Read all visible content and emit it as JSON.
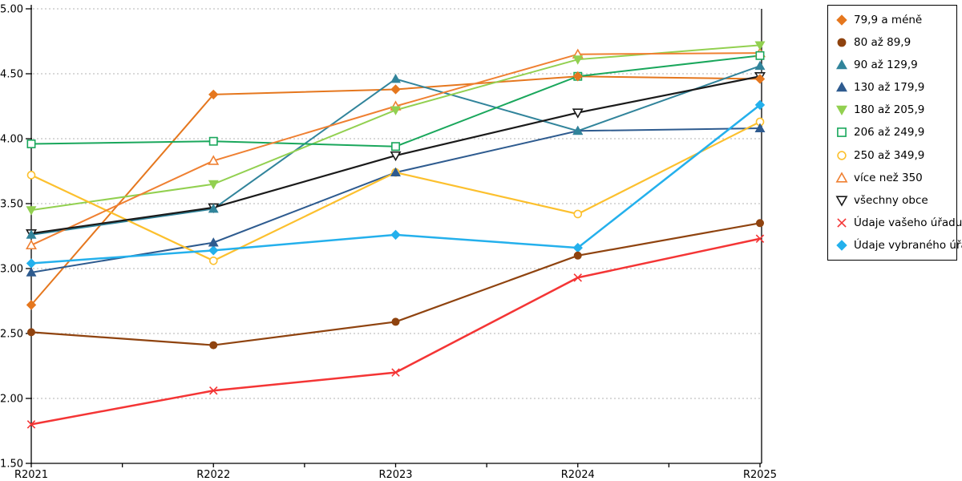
{
  "chart_data": {
    "type": "line",
    "title": "",
    "xlabel": "",
    "ylabel": "",
    "categories": [
      "R2021",
      "R2022",
      "R2023",
      "R2024",
      "R2025"
    ],
    "ylim": [
      1.5,
      5.0
    ],
    "y_ticks": [
      "5.00",
      "4.50",
      "4.00",
      "3.50",
      "3.00",
      "2.50",
      "2.00",
      "1.50"
    ],
    "grid": "horizontal-dashed",
    "legend_position": "right",
    "series": [
      {
        "name": "79,9 a méně",
        "color": "#e5771e",
        "marker": "diamond",
        "fill": "solid",
        "width": 2,
        "values": [
          2.72,
          4.34,
          4.38,
          4.48,
          4.46
        ]
      },
      {
        "name": "80 až 89,9",
        "color": "#8f430f",
        "marker": "circle",
        "fill": "solid",
        "width": 2.2,
        "values": [
          2.51,
          2.41,
          2.59,
          3.1,
          3.35
        ]
      },
      {
        "name": "90 až 129,9",
        "color": "#31849b",
        "marker": "triangle-up",
        "fill": "solid",
        "width": 2,
        "values": [
          3.26,
          3.46,
          4.46,
          4.06,
          4.56
        ]
      },
      {
        "name": "130 až 179,9",
        "color": "#2e5b8f",
        "marker": "triangle-up",
        "fill": "solid",
        "width": 2,
        "values": [
          2.97,
          3.2,
          3.74,
          4.06,
          4.08
        ]
      },
      {
        "name": "180 až 205,9",
        "color": "#92d050",
        "marker": "triangle-down",
        "fill": "solid",
        "width": 2,
        "values": [
          3.45,
          3.65,
          4.22,
          4.61,
          4.72
        ]
      },
      {
        "name": "206 až 249,9",
        "color": "#1aa75c",
        "marker": "square",
        "fill": "open",
        "width": 2,
        "values": [
          3.96,
          3.98,
          3.94,
          4.48,
          4.64
        ]
      },
      {
        "name": "250 až 349,9",
        "color": "#fcc02e",
        "marker": "circle",
        "fill": "open",
        "width": 2.2,
        "values": [
          3.72,
          3.06,
          3.74,
          3.42,
          4.13
        ]
      },
      {
        "name": "více než 350",
        "color": "#ef8032",
        "marker": "triangle-up",
        "fill": "open",
        "width": 2,
        "values": [
          3.18,
          3.83,
          4.25,
          4.65,
          4.66
        ]
      },
      {
        "name": "všechny obce",
        "color": "#1a1a1a",
        "marker": "triangle-down",
        "fill": "open",
        "width": 2.2,
        "values": [
          3.27,
          3.47,
          3.87,
          4.2,
          4.48
        ]
      },
      {
        "name": "Údaje vašeho úřadu",
        "color": "#f43535",
        "marker": "x",
        "fill": "open",
        "width": 2.5,
        "values": [
          1.8,
          2.06,
          2.2,
          2.93,
          3.23
        ]
      },
      {
        "name": "Údaje vybraného úřadu",
        "color": "#24b0ec",
        "marker": "diamond",
        "fill": "solid",
        "width": 2.5,
        "values": [
          3.04,
          3.14,
          3.26,
          3.16,
          4.26
        ]
      }
    ],
    "colors": {
      "grid": "#b3b3b3",
      "axis": "#000000",
      "background": "#ffffff"
    }
  }
}
